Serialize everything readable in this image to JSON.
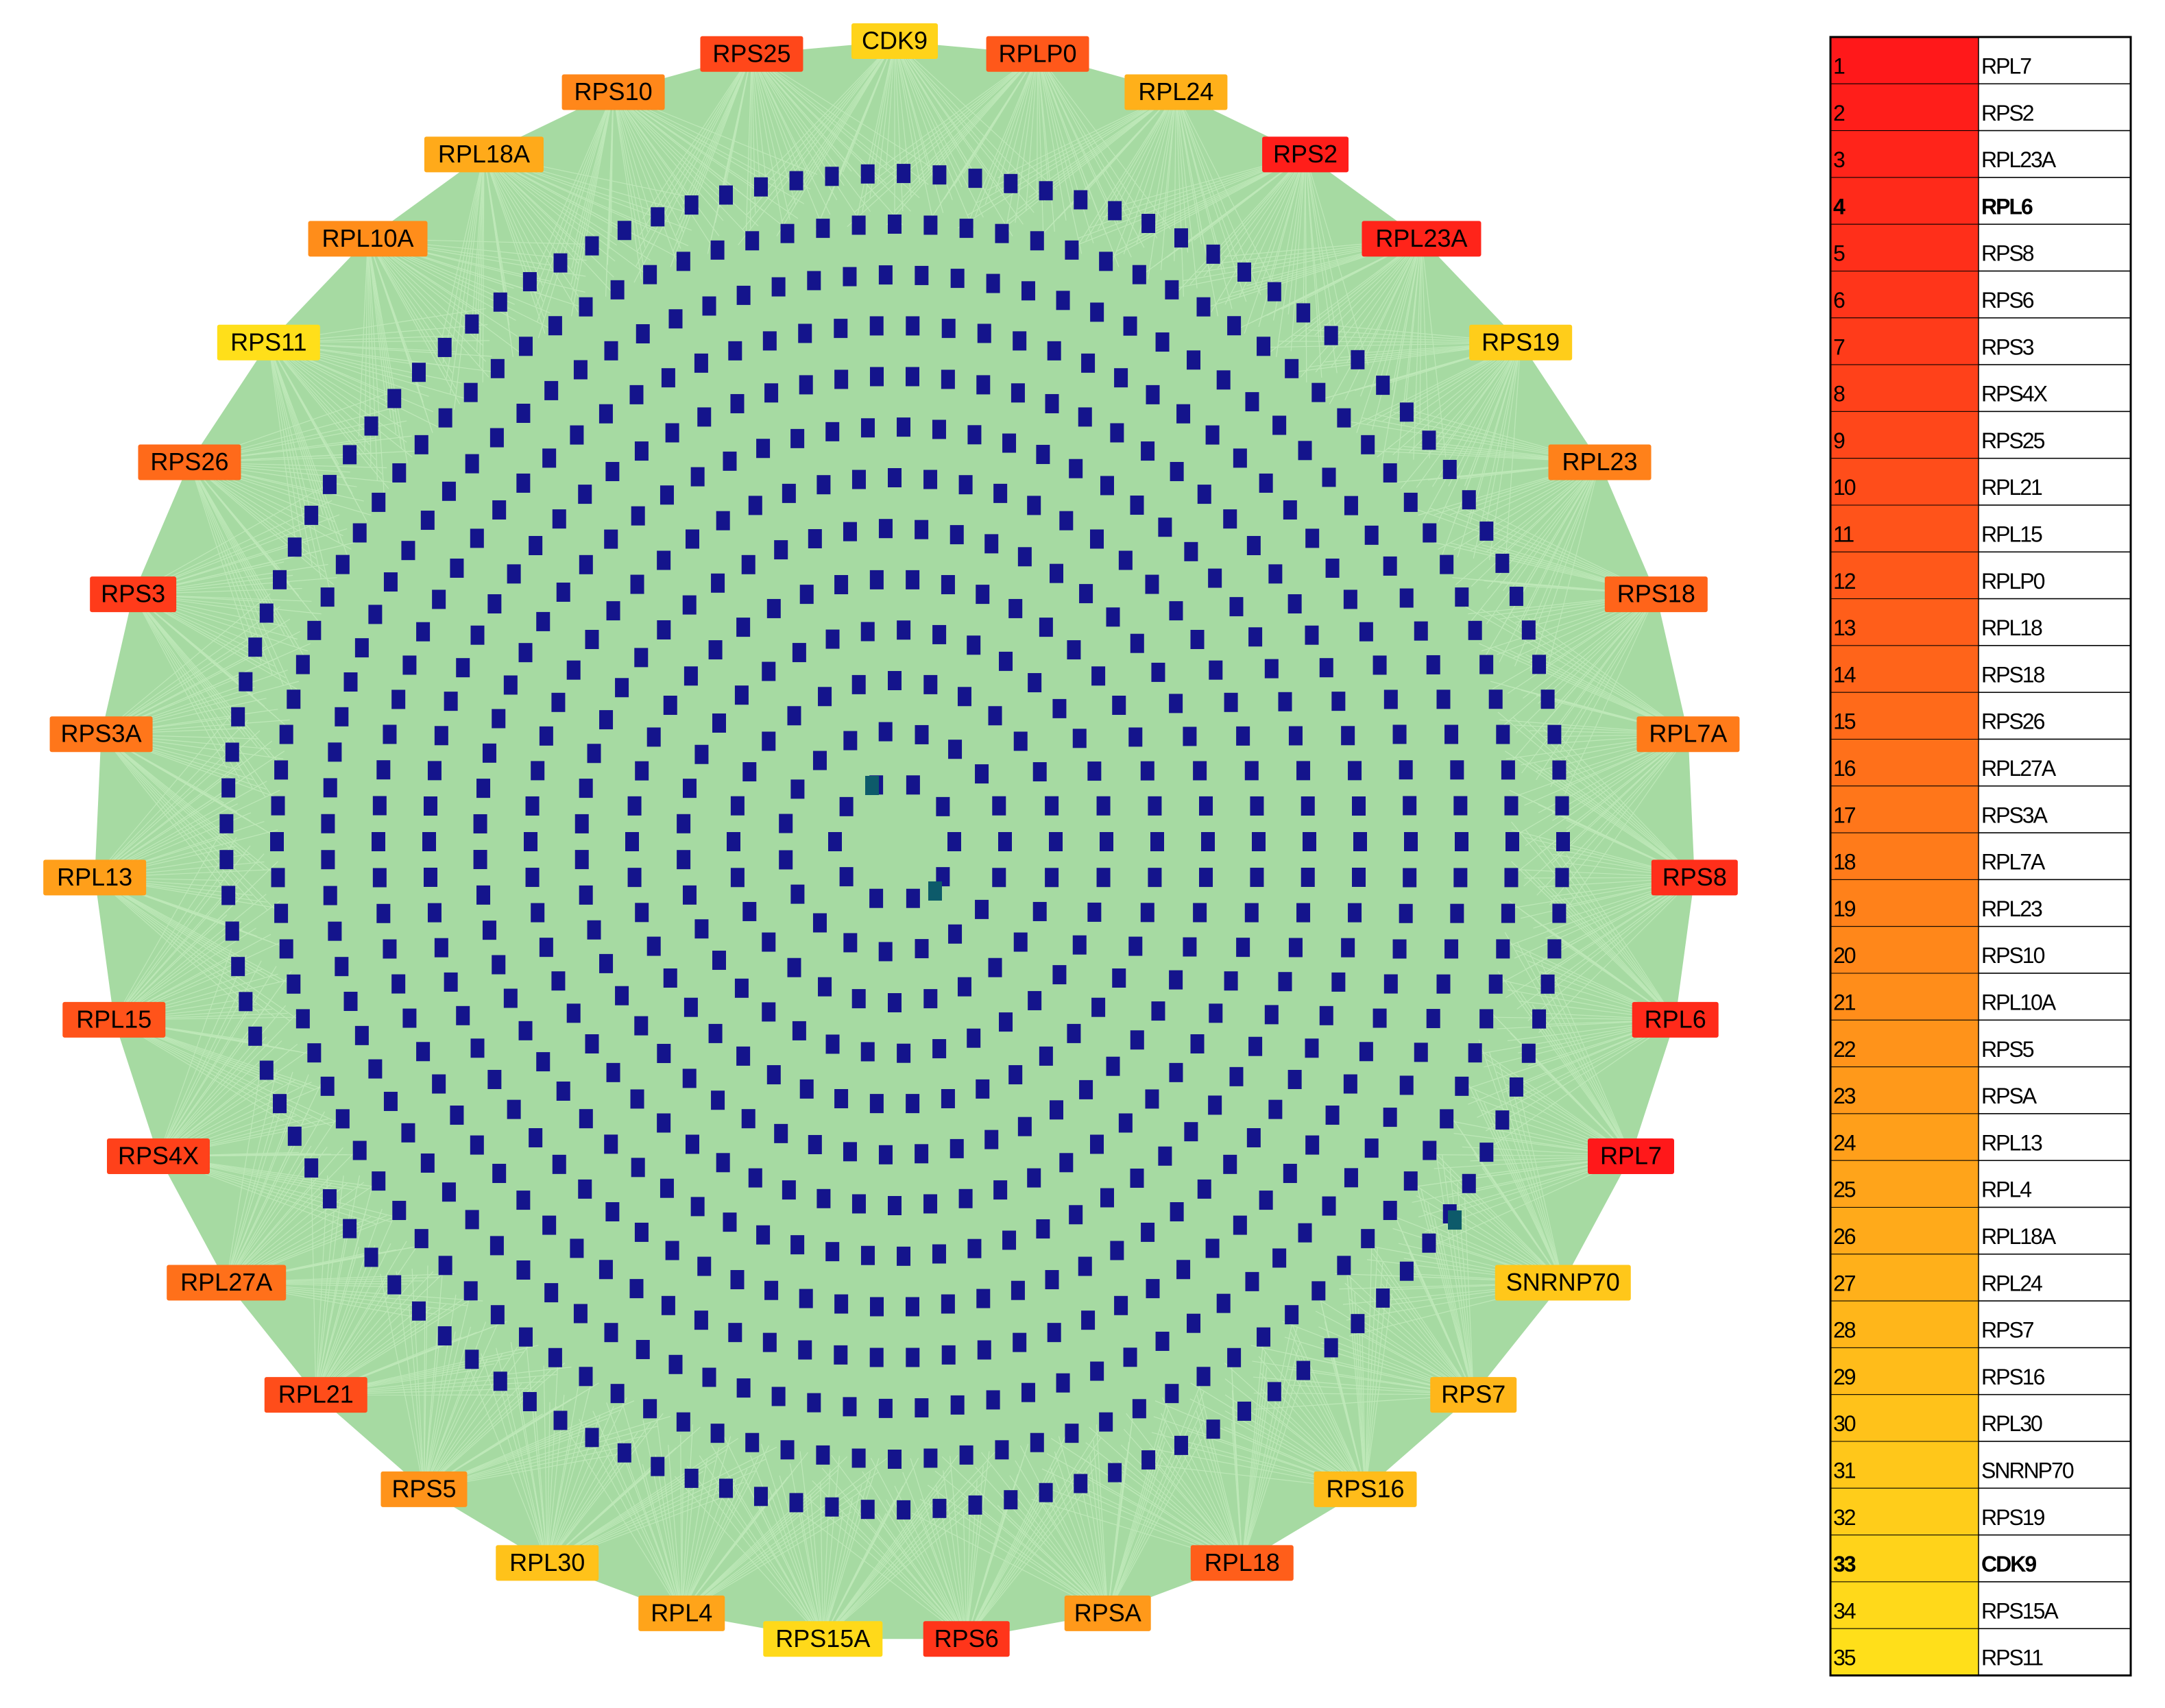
{
  "nodes": [
    "CDK9",
    "RPLP0",
    "RPL24",
    "RPS2",
    "RPL23A",
    "RPS19",
    "RPL23",
    "RPS18",
    "RPL7A",
    "RPS8",
    "RPL6",
    "RPL7",
    "SNRNP70",
    "RPS7",
    "RPS16",
    "RPL18",
    "RPSA",
    "RPS6",
    "RPS15A",
    "RPL4",
    "RPL30",
    "RPS5",
    "RPL21",
    "RPL27A",
    "RPS4X",
    "RPL15",
    "RPL13",
    "RPS3A",
    "RPS3",
    "RPS26",
    "RPS11",
    "RPL10A",
    "RPL18A",
    "RPS10",
    "RPS25"
  ],
  "table": {
    "rows": [
      {
        "rank": 1,
        "gene": "RPL7",
        "color": "#ff181a"
      },
      {
        "rank": 2,
        "gene": "RPS2",
        "color": "#ff1e1a"
      },
      {
        "rank": 3,
        "gene": "RPL23A",
        "color": "#ff241a"
      },
      {
        "rank": 4,
        "gene": "RPL6",
        "color": "#ff2a1a",
        "bold": true
      },
      {
        "rank": 5,
        "gene": "RPS8",
        "color": "#ff2f1a"
      },
      {
        "rank": 6,
        "gene": "RPS6",
        "color": "#ff351a"
      },
      {
        "rank": 7,
        "gene": "RPS3",
        "color": "#ff3b1a"
      },
      {
        "rank": 8,
        "gene": "RPS4X",
        "color": "#ff411a"
      },
      {
        "rank": 9,
        "gene": "RPS25",
        "color": "#ff471a"
      },
      {
        "rank": 10,
        "gene": "RPL21",
        "color": "#ff4d1a"
      },
      {
        "rank": 11,
        "gene": "RPL15",
        "color": "#ff531a"
      },
      {
        "rank": 12,
        "gene": "RPLP0",
        "color": "#ff581a"
      },
      {
        "rank": 13,
        "gene": "RPL18",
        "color": "#ff5e1a"
      },
      {
        "rank": 14,
        "gene": "RPS18",
        "color": "#ff641a"
      },
      {
        "rank": 15,
        "gene": "RPS26",
        "color": "#ff6a1a"
      },
      {
        "rank": 16,
        "gene": "RPL27A",
        "color": "#ff701a"
      },
      {
        "rank": 17,
        "gene": "RPS3A",
        "color": "#ff761a"
      },
      {
        "rank": 18,
        "gene": "RPL7A",
        "color": "#ff7b1a"
      },
      {
        "rank": 19,
        "gene": "RPL23",
        "color": "#ff811a"
      },
      {
        "rank": 20,
        "gene": "RPS10",
        "color": "#ff871a"
      },
      {
        "rank": 21,
        "gene": "RPL10A",
        "color": "#ff8d1a"
      },
      {
        "rank": 22,
        "gene": "RPS5",
        "color": "#ff931a"
      },
      {
        "rank": 23,
        "gene": "RPSA",
        "color": "#ff991a"
      },
      {
        "rank": 24,
        "gene": "RPL13",
        "color": "#ff9f1a"
      },
      {
        "rank": 25,
        "gene": "RPL4",
        "color": "#ffa41a"
      },
      {
        "rank": 26,
        "gene": "RPL18A",
        "color": "#ffaa1a"
      },
      {
        "rank": 27,
        "gene": "RPL24",
        "color": "#ffb01a"
      },
      {
        "rank": 28,
        "gene": "RPS7",
        "color": "#ffb61a"
      },
      {
        "rank": 29,
        "gene": "RPS16",
        "color": "#ffbc1a"
      },
      {
        "rank": 30,
        "gene": "RPL30",
        "color": "#ffc21a"
      },
      {
        "rank": 31,
        "gene": "SNRNP70",
        "color": "#ffc71a"
      },
      {
        "rank": 32,
        "gene": "RPS19",
        "color": "#ffcd1a"
      },
      {
        "rank": 33,
        "gene": "CDK9",
        "color": "#ffd31a",
        "bold": true
      },
      {
        "rank": 34,
        "gene": "RPS15A",
        "color": "#ffd91a"
      },
      {
        "rank": 35,
        "gene": "RPS11",
        "color": "#ffdf1a"
      }
    ]
  }
}
